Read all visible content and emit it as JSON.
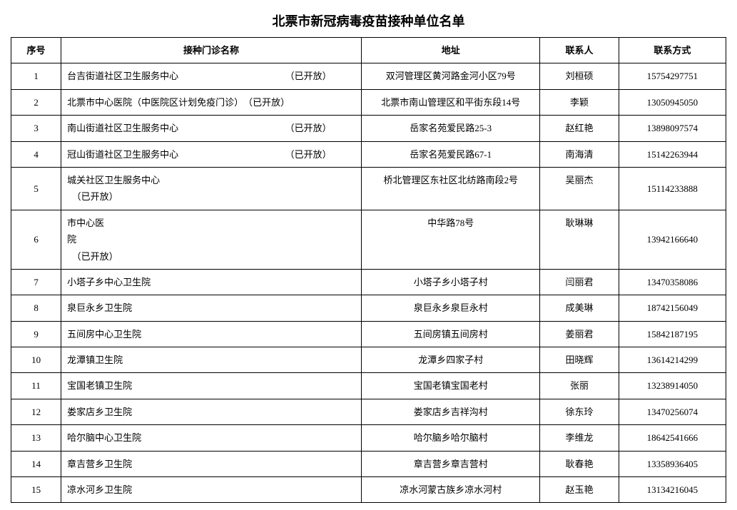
{
  "title": "北票市新冠病毒疫苗接种单位名单",
  "title_fontsize": 18,
  "cell_fontsize": 13,
  "columns": [
    "序号",
    "接种门诊名称",
    "地址",
    "联系人",
    "联系方式"
  ],
  "column_aligns": [
    "center",
    "left",
    "center",
    "center",
    "center"
  ],
  "rows": [
    {
      "seq": "1",
      "name": "台吉街道社区卫生服务中心　　　　　　　　　　　　（已开放）",
      "addr": "双河管理区黄河路金河小区79号",
      "contact": "刘桓硕",
      "phone": "15754297751",
      "addr_vtop": false,
      "contact_vtop": true
    },
    {
      "seq": "2",
      "name": "北票市中心医院（中医院区计划免疫门诊）　（已开放）",
      "addr": "北票市南山管理区和平街东段14号",
      "contact": "李颖",
      "phone": "13050945050",
      "addr_vtop": false,
      "contact_vtop": false
    },
    {
      "seq": "3",
      "name": "南山街道社区卫生服务中心　　　　　　　　　　　　（已开放）",
      "addr": "岳家名苑爱民路25-3",
      "contact": "赵红艳",
      "phone": "13898097574",
      "addr_vtop": false,
      "contact_vtop": true
    },
    {
      "seq": "4",
      "name": "冠山街道社区卫生服务中心　　　　　　　　　　　　（已开放）",
      "addr": "岳家名苑爱民路67-1",
      "contact": "南海清",
      "phone": "15142263944",
      "addr_vtop": true,
      "contact_vtop": true
    },
    {
      "seq": "5",
      "name": "城关社区卫生服务中心\n　（已开放）",
      "addr": "桥北管理区东社区北纺路南段2号",
      "contact": "吴丽杰",
      "phone": "15114233888",
      "addr_vtop": true,
      "contact_vtop": true
    },
    {
      "seq": "6",
      "name": "市中心医\n院\n　（已开放）",
      "addr": "中华路78号",
      "contact": "耿琳琳",
      "phone": "13942166640",
      "addr_vtop": true,
      "contact_vtop": true
    },
    {
      "seq": "7",
      "name": "小塔子乡中心卫生院",
      "addr": "小塔子乡小塔子村",
      "contact": "闫丽君",
      "phone": "13470358086",
      "addr_vtop": false,
      "contact_vtop": false
    },
    {
      "seq": "8",
      "name": "泉巨永乡卫生院",
      "addr": "泉巨永乡泉巨永村",
      "contact": "成美琳",
      "phone": "18742156049",
      "addr_vtop": false,
      "contact_vtop": false
    },
    {
      "seq": "9",
      "name": "五间房中心卫生院",
      "addr": "五间房镇五间房村",
      "contact": "姜丽君",
      "phone": "15842187195",
      "addr_vtop": false,
      "contact_vtop": false
    },
    {
      "seq": "10",
      "name": "龙潭镇卫生院",
      "addr": "龙潭乡四家子村",
      "contact": "田晓辉",
      "phone": "13614214299",
      "addr_vtop": false,
      "contact_vtop": false
    },
    {
      "seq": "11",
      "name": "宝国老镇卫生院",
      "addr": "宝国老镇宝国老村",
      "contact": "张丽",
      "phone": "13238914050",
      "addr_vtop": false,
      "contact_vtop": false
    },
    {
      "seq": "12",
      "name": "娄家店乡卫生院",
      "addr": "娄家店乡吉祥沟村",
      "contact": "徐东玲",
      "phone": "13470256074",
      "addr_vtop": false,
      "contact_vtop": false
    },
    {
      "seq": "13",
      "name": "哈尔脑中心卫生院",
      "addr": "哈尔脑乡哈尔脑村",
      "contact": "李维龙",
      "phone": "18642541666",
      "addr_vtop": false,
      "contact_vtop": false
    },
    {
      "seq": "14",
      "name": "章吉营乡卫生院",
      "addr": "章吉营乡章吉营村",
      "contact": "耿春艳",
      "phone": "13358936405",
      "addr_vtop": false,
      "contact_vtop": false
    },
    {
      "seq": "15",
      "name": "凉水河乡卫生院",
      "addr": "凉水河蒙古族乡凉水河村",
      "contact": "赵玉艳",
      "phone": "13134216045",
      "addr_vtop": false,
      "contact_vtop": false
    }
  ],
  "colors": {
    "background": "#ffffff",
    "text": "#000000",
    "border": "#000000"
  }
}
